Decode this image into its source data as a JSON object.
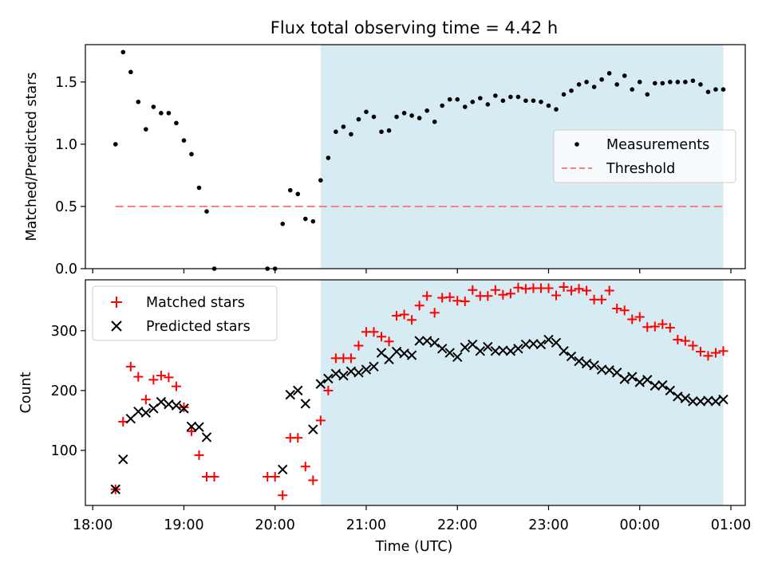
{
  "chart_data": [
    {
      "type": "scatter",
      "title": "Flux total observing time = 4.42 h",
      "xlabel": "",
      "ylabel": "Matched/Predicted stars",
      "xlim": [
        "18:00",
        "01:00"
      ],
      "ylim": [
        0,
        1.8
      ],
      "x_axis_format": "HH:MM (hours since 18:00 on observing night)",
      "yticks": [
        "0.0",
        "0.5",
        "1.0",
        "1.5"
      ],
      "observing_window": {
        "start": "20:30",
        "end": "00:55",
        "color": "#add8e6"
      },
      "legend": {
        "position": "center-right",
        "entries": [
          "Measurements",
          "Threshold"
        ]
      },
      "series": [
        {
          "name": "Measurements",
          "color": "#000000",
          "marker": "dot",
          "points": [
            [
              "18:15",
              1.0
            ],
            [
              "18:20",
              1.74
            ],
            [
              "18:25",
              1.58
            ],
            [
              "18:30",
              1.34
            ],
            [
              "18:35",
              1.12
            ],
            [
              "18:40",
              1.3
            ],
            [
              "18:45",
              1.25
            ],
            [
              "18:50",
              1.25
            ],
            [
              "18:55",
              1.17
            ],
            [
              "19:00",
              1.03
            ],
            [
              "19:05",
              0.92
            ],
            [
              "19:10",
              0.65
            ],
            [
              "19:15",
              0.46
            ],
            [
              "19:20",
              0.0
            ],
            [
              "19:55",
              0.0
            ],
            [
              "20:00",
              0.0
            ],
            [
              "20:05",
              0.36
            ],
            [
              "20:10",
              0.63
            ],
            [
              "20:15",
              0.6
            ],
            [
              "20:20",
              0.4
            ],
            [
              "20:25",
              0.38
            ],
            [
              "20:30",
              0.71
            ],
            [
              "20:35",
              0.89
            ],
            [
              "20:40",
              1.1
            ],
            [
              "20:45",
              1.14
            ],
            [
              "20:50",
              1.08
            ],
            [
              "20:55",
              1.2
            ],
            [
              "21:00",
              1.26
            ],
            [
              "21:05",
              1.22
            ],
            [
              "21:10",
              1.1
            ],
            [
              "21:15",
              1.11
            ],
            [
              "21:20",
              1.22
            ],
            [
              "21:25",
              1.25
            ],
            [
              "21:30",
              1.23
            ],
            [
              "21:35",
              1.21
            ],
            [
              "21:40",
              1.27
            ],
            [
              "21:45",
              1.18
            ],
            [
              "21:50",
              1.31
            ],
            [
              "21:55",
              1.36
            ],
            [
              "22:00",
              1.36
            ],
            [
              "22:05",
              1.3
            ],
            [
              "22:10",
              1.34
            ],
            [
              "22:15",
              1.37
            ],
            [
              "22:20",
              1.32
            ],
            [
              "22:25",
              1.39
            ],
            [
              "22:30",
              1.35
            ],
            [
              "22:35",
              1.38
            ],
            [
              "22:40",
              1.38
            ],
            [
              "22:45",
              1.35
            ],
            [
              "22:50",
              1.35
            ],
            [
              "22:55",
              1.34
            ],
            [
              "23:00",
              1.31
            ],
            [
              "23:05",
              1.28
            ],
            [
              "23:10",
              1.4
            ],
            [
              "23:15",
              1.43
            ],
            [
              "23:20",
              1.48
            ],
            [
              "23:25",
              1.5
            ],
            [
              "23:30",
              1.46
            ],
            [
              "23:35",
              1.52
            ],
            [
              "23:40",
              1.57
            ],
            [
              "23:45",
              1.48
            ],
            [
              "23:50",
              1.55
            ],
            [
              "23:55",
              1.44
            ],
            [
              "00:00",
              1.5
            ],
            [
              "00:05",
              1.4
            ],
            [
              "00:10",
              1.49
            ],
            [
              "00:15",
              1.49
            ],
            [
              "00:20",
              1.5
            ],
            [
              "00:25",
              1.5
            ],
            [
              "00:30",
              1.5
            ],
            [
              "00:35",
              1.51
            ],
            [
              "00:40",
              1.48
            ],
            [
              "00:45",
              1.42
            ],
            [
              "00:50",
              1.44
            ],
            [
              "00:55",
              1.44
            ]
          ]
        },
        {
          "name": "Threshold",
          "color": "#ff7f7f",
          "style": "dashed",
          "points": [
            [
              "18:15",
              0.5
            ],
            [
              "00:55",
              0.5
            ]
          ]
        }
      ]
    },
    {
      "type": "scatter",
      "title": "",
      "xlabel": "Time (UTC)",
      "ylabel": "Count",
      "xlim": [
        "18:00",
        "01:00"
      ],
      "ylim": [
        8,
        385
      ],
      "x_axis_format": "HH:MM (hours since 18:00 on observing night)",
      "xticks": [
        "18:00",
        "19:00",
        "20:00",
        "21:00",
        "22:00",
        "23:00",
        "00:00",
        "01:00"
      ],
      "yticks": [
        "100",
        "200",
        "300"
      ],
      "observing_window": {
        "start": "20:30",
        "end": "00:55",
        "color": "#add8e6"
      },
      "legend": {
        "position": "top-left",
        "entries": [
          "Matched stars",
          "Predicted stars"
        ]
      },
      "series": [
        {
          "name": "Matched stars",
          "color": "#ff0000",
          "marker": "plus",
          "points": [
            [
              "18:15",
              35
            ],
            [
              "18:20",
              148
            ],
            [
              "18:25",
              240
            ],
            [
              "18:30",
              223
            ],
            [
              "18:35",
              185
            ],
            [
              "18:40",
              218
            ],
            [
              "18:45",
              225
            ],
            [
              "18:50",
              222
            ],
            [
              "18:55",
              207
            ],
            [
              "19:00",
              172
            ],
            [
              "19:05",
              132
            ],
            [
              "19:10",
              92
            ],
            [
              "19:15",
              56
            ],
            [
              "19:20",
              56
            ],
            [
              "19:55",
              56
            ],
            [
              "20:00",
              56
            ],
            [
              "20:05",
              25
            ],
            [
              "20:10",
              121
            ],
            [
              "20:15",
              121
            ],
            [
              "20:20",
              73
            ],
            [
              "20:25",
              50
            ],
            [
              "20:30",
              150
            ],
            [
              "20:35",
              200
            ],
            [
              "20:40",
              254
            ],
            [
              "20:45",
              254
            ],
            [
              "20:50",
              254
            ],
            [
              "20:55",
              275
            ],
            [
              "21:00",
              298
            ],
            [
              "21:05",
              298
            ],
            [
              "21:10",
              290
            ],
            [
              "21:15",
              282
            ],
            [
              "21:20",
              325
            ],
            [
              "21:25",
              327
            ],
            [
              "21:30",
              318
            ],
            [
              "21:35",
              342
            ],
            [
              "21:40",
              358
            ],
            [
              "21:45",
              330
            ],
            [
              "21:50",
              355
            ],
            [
              "21:55",
              356
            ],
            [
              "22:00",
              350
            ],
            [
              "22:05",
              349
            ],
            [
              "22:10",
              368
            ],
            [
              "22:15",
              358
            ],
            [
              "22:20",
              358
            ],
            [
              "22:25",
              368
            ],
            [
              "22:30",
              360
            ],
            [
              "22:35",
              362
            ],
            [
              "22:40",
              372
            ],
            [
              "22:45",
              370
            ],
            [
              "22:50",
              371
            ],
            [
              "22:55",
              371
            ],
            [
              "23:00",
              371
            ],
            [
              "23:05",
              359
            ],
            [
              "23:10",
              373
            ],
            [
              "23:15",
              367
            ],
            [
              "23:20",
              370
            ],
            [
              "23:25",
              367
            ],
            [
              "23:30",
              352
            ],
            [
              "23:35",
              352
            ],
            [
              "23:40",
              367
            ],
            [
              "23:45",
              337
            ],
            [
              "23:50",
              334
            ],
            [
              "23:55",
              319
            ],
            [
              "00:00",
              323
            ],
            [
              "00:05",
              306
            ],
            [
              "00:10",
              307
            ],
            [
              "00:15",
              311
            ],
            [
              "00:20",
              305
            ],
            [
              "00:25",
              285
            ],
            [
              "00:30",
              283
            ],
            [
              "00:35",
              275
            ],
            [
              "00:40",
              265
            ],
            [
              "00:45",
              258
            ],
            [
              "00:50",
              263
            ],
            [
              "00:55",
              266
            ]
          ]
        },
        {
          "name": "Predicted stars",
          "color": "#000000",
          "marker": "x",
          "points": [
            [
              "18:15",
              35
            ],
            [
              "18:20",
              85
            ],
            [
              "18:25",
              153
            ],
            [
              "18:30",
              165
            ],
            [
              "18:35",
              163
            ],
            [
              "18:40",
              170
            ],
            [
              "18:45",
              181
            ],
            [
              "18:50",
              177
            ],
            [
              "18:55",
              175
            ],
            [
              "19:00",
              170
            ],
            [
              "19:05",
              140
            ],
            [
              "19:10",
              139
            ],
            [
              "19:15",
              122
            ],
            [
              "20:05",
              68
            ],
            [
              "20:10",
              193
            ],
            [
              "20:15",
              200
            ],
            [
              "20:20",
              178
            ],
            [
              "20:25",
              135
            ],
            [
              "20:30",
              211
            ],
            [
              "20:35",
              220
            ],
            [
              "20:40",
              228
            ],
            [
              "20:45",
              225
            ],
            [
              "20:50",
              232
            ],
            [
              "20:55",
              230
            ],
            [
              "21:00",
              235
            ],
            [
              "21:05",
              240
            ],
            [
              "21:10",
              263
            ],
            [
              "21:15",
              252
            ],
            [
              "21:20",
              265
            ],
            [
              "21:25",
              262
            ],
            [
              "21:30",
              259
            ],
            [
              "21:35",
              283
            ],
            [
              "21:40",
              283
            ],
            [
              "21:45",
              280
            ],
            [
              "21:50",
              270
            ],
            [
              "21:55",
              263
            ],
            [
              "22:00",
              256
            ],
            [
              "22:05",
              272
            ],
            [
              "22:10",
              277
            ],
            [
              "22:15",
              266
            ],
            [
              "22:20",
              273
            ],
            [
              "22:25",
              266
            ],
            [
              "22:30",
              267
            ],
            [
              "22:35",
              266
            ],
            [
              "22:40",
              270
            ],
            [
              "22:45",
              277
            ],
            [
              "22:50",
              278
            ],
            [
              "22:55",
              277
            ],
            [
              "23:00",
              285
            ],
            [
              "23:05",
              280
            ],
            [
              "23:10",
              266
            ],
            [
              "23:15",
              257
            ],
            [
              "23:20",
              249
            ],
            [
              "23:25",
              245
            ],
            [
              "23:30",
              242
            ],
            [
              "23:35",
              235
            ],
            [
              "23:40",
              234
            ],
            [
              "23:45",
              230
            ],
            [
              "23:50",
              219
            ],
            [
              "23:55",
              223
            ],
            [
              "00:00",
              214
            ],
            [
              "00:05",
              218
            ],
            [
              "00:10",
              208
            ],
            [
              "00:15",
              209
            ],
            [
              "00:20",
              200
            ],
            [
              "00:25",
              190
            ],
            [
              "00:30",
              187
            ],
            [
              "00:35",
              182
            ],
            [
              "00:40",
              182
            ],
            [
              "00:45",
              183
            ],
            [
              "00:50",
              182
            ],
            [
              "00:55",
              185
            ]
          ]
        }
      ]
    }
  ]
}
